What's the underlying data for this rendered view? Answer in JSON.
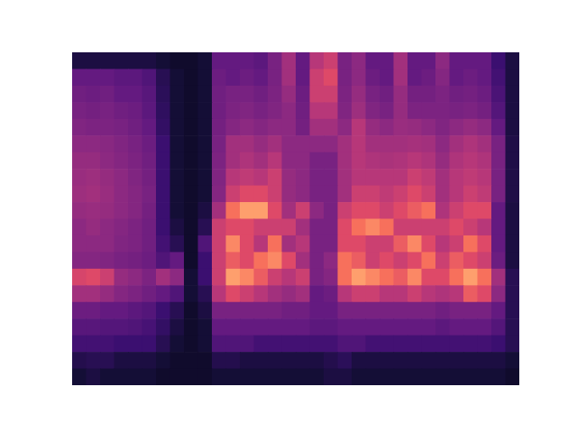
{
  "chart_data": {
    "type": "heatmap",
    "color": "magma",
    "tick_labels": false,
    "zlim": [
      0,
      1
    ],
    "cells": [
      [
        0.12,
        0.12,
        0.12,
        0.12,
        0.12,
        0.12,
        0.1,
        0.08,
        0.08,
        0.1,
        0.3,
        0.3,
        0.3,
        0.28,
        0.35,
        0.45,
        0.3,
        0.5,
        0.55,
        0.35,
        0.4,
        0.3,
        0.3,
        0.45,
        0.3,
        0.3,
        0.4,
        0.3,
        0.3,
        0.3,
        0.2,
        0.12
      ],
      [
        0.3,
        0.3,
        0.3,
        0.28,
        0.28,
        0.25,
        0.15,
        0.1,
        0.08,
        0.1,
        0.32,
        0.3,
        0.32,
        0.3,
        0.35,
        0.45,
        0.3,
        0.55,
        0.6,
        0.35,
        0.4,
        0.32,
        0.3,
        0.45,
        0.3,
        0.32,
        0.38,
        0.3,
        0.32,
        0.3,
        0.22,
        0.12
      ],
      [
        0.33,
        0.32,
        0.33,
        0.3,
        0.3,
        0.27,
        0.16,
        0.1,
        0.08,
        0.1,
        0.33,
        0.35,
        0.35,
        0.33,
        0.36,
        0.42,
        0.32,
        0.55,
        0.55,
        0.36,
        0.42,
        0.35,
        0.33,
        0.42,
        0.34,
        0.34,
        0.36,
        0.33,
        0.34,
        0.32,
        0.24,
        0.12
      ],
      [
        0.35,
        0.34,
        0.35,
        0.33,
        0.32,
        0.28,
        0.17,
        0.1,
        0.08,
        0.1,
        0.33,
        0.36,
        0.37,
        0.35,
        0.37,
        0.4,
        0.33,
        0.5,
        0.5,
        0.37,
        0.44,
        0.37,
        0.35,
        0.42,
        0.36,
        0.36,
        0.36,
        0.35,
        0.36,
        0.34,
        0.26,
        0.12
      ],
      [
        0.37,
        0.36,
        0.36,
        0.35,
        0.33,
        0.3,
        0.18,
        0.1,
        0.08,
        0.1,
        0.34,
        0.38,
        0.4,
        0.38,
        0.4,
        0.4,
        0.34,
        0.45,
        0.45,
        0.4,
        0.5,
        0.42,
        0.4,
        0.43,
        0.42,
        0.4,
        0.37,
        0.4,
        0.42,
        0.4,
        0.3,
        0.12
      ],
      [
        0.4,
        0.4,
        0.39,
        0.37,
        0.35,
        0.32,
        0.2,
        0.1,
        0.08,
        0.1,
        0.35,
        0.45,
        0.45,
        0.42,
        0.45,
        0.4,
        0.4,
        0.4,
        0.4,
        0.45,
        0.5,
        0.45,
        0.45,
        0.45,
        0.46,
        0.45,
        0.4,
        0.45,
        0.48,
        0.45,
        0.35,
        0.13
      ],
      [
        0.42,
        0.42,
        0.4,
        0.38,
        0.36,
        0.33,
        0.2,
        0.1,
        0.08,
        0.1,
        0.36,
        0.45,
        0.48,
        0.45,
        0.5,
        0.4,
        0.4,
        0.35,
        0.35,
        0.45,
        0.5,
        0.48,
        0.47,
        0.48,
        0.5,
        0.48,
        0.42,
        0.48,
        0.5,
        0.48,
        0.35,
        0.13
      ],
      [
        0.43,
        0.44,
        0.42,
        0.4,
        0.37,
        0.34,
        0.2,
        0.1,
        0.08,
        0.1,
        0.37,
        0.5,
        0.52,
        0.5,
        0.55,
        0.42,
        0.4,
        0.35,
        0.35,
        0.45,
        0.5,
        0.5,
        0.5,
        0.5,
        0.55,
        0.52,
        0.45,
        0.5,
        0.52,
        0.5,
        0.35,
        0.13
      ],
      [
        0.44,
        0.45,
        0.43,
        0.4,
        0.38,
        0.35,
        0.2,
        0.1,
        0.08,
        0.1,
        0.38,
        0.55,
        0.6,
        0.6,
        0.55,
        0.42,
        0.4,
        0.35,
        0.35,
        0.45,
        0.55,
        0.55,
        0.52,
        0.55,
        0.6,
        0.55,
        0.45,
        0.5,
        0.55,
        0.52,
        0.35,
        0.13
      ],
      [
        0.42,
        0.43,
        0.42,
        0.4,
        0.38,
        0.34,
        0.2,
        0.1,
        0.08,
        0.12,
        0.45,
        0.7,
        0.8,
        0.8,
        0.6,
        0.45,
        0.55,
        0.4,
        0.35,
        0.55,
        0.6,
        0.6,
        0.55,
        0.6,
        0.65,
        0.7,
        0.48,
        0.55,
        0.6,
        0.6,
        0.3,
        0.12
      ],
      [
        0.4,
        0.42,
        0.4,
        0.38,
        0.36,
        0.33,
        0.2,
        0.12,
        0.08,
        0.15,
        0.55,
        0.6,
        0.6,
        0.55,
        0.55,
        0.55,
        0.45,
        0.35,
        0.35,
        0.6,
        0.7,
        0.75,
        0.7,
        0.55,
        0.55,
        0.55,
        0.55,
        0.6,
        0.55,
        0.5,
        0.3,
        0.12
      ],
      [
        0.4,
        0.4,
        0.4,
        0.37,
        0.36,
        0.33,
        0.22,
        0.15,
        0.08,
        0.25,
        0.55,
        0.75,
        0.6,
        0.5,
        0.7,
        0.45,
        0.5,
        0.35,
        0.35,
        0.6,
        0.6,
        0.55,
        0.55,
        0.65,
        0.75,
        0.6,
        0.5,
        0.55,
        0.7,
        0.6,
        0.3,
        0.12
      ],
      [
        0.38,
        0.38,
        0.37,
        0.35,
        0.34,
        0.32,
        0.25,
        0.3,
        0.08,
        0.2,
        0.55,
        0.65,
        0.6,
        0.7,
        0.75,
        0.6,
        0.45,
        0.35,
        0.4,
        0.7,
        0.65,
        0.55,
        0.6,
        0.55,
        0.6,
        0.7,
        0.55,
        0.65,
        0.6,
        0.55,
        0.32,
        0.12
      ],
      [
        0.58,
        0.6,
        0.55,
        0.42,
        0.4,
        0.36,
        0.45,
        0.4,
        0.1,
        0.2,
        0.55,
        0.8,
        0.75,
        0.65,
        0.55,
        0.5,
        0.55,
        0.35,
        0.38,
        0.7,
        0.8,
        0.75,
        0.7,
        0.65,
        0.75,
        0.6,
        0.6,
        0.7,
        0.8,
        0.7,
        0.45,
        0.15
      ],
      [
        0.45,
        0.45,
        0.42,
        0.38,
        0.36,
        0.33,
        0.3,
        0.25,
        0.1,
        0.15,
        0.5,
        0.6,
        0.55,
        0.5,
        0.45,
        0.42,
        0.45,
        0.3,
        0.32,
        0.5,
        0.55,
        0.55,
        0.5,
        0.5,
        0.55,
        0.5,
        0.48,
        0.5,
        0.65,
        0.6,
        0.4,
        0.15
      ],
      [
        0.32,
        0.32,
        0.3,
        0.3,
        0.28,
        0.26,
        0.2,
        0.15,
        0.08,
        0.12,
        0.35,
        0.35,
        0.35,
        0.35,
        0.35,
        0.33,
        0.33,
        0.3,
        0.3,
        0.35,
        0.35,
        0.35,
        0.35,
        0.35,
        0.35,
        0.35,
        0.33,
        0.35,
        0.35,
        0.35,
        0.3,
        0.15
      ],
      [
        0.27,
        0.27,
        0.26,
        0.26,
        0.25,
        0.23,
        0.18,
        0.12,
        0.08,
        0.1,
        0.3,
        0.3,
        0.3,
        0.3,
        0.3,
        0.3,
        0.3,
        0.28,
        0.28,
        0.3,
        0.3,
        0.3,
        0.3,
        0.3,
        0.3,
        0.3,
        0.28,
        0.3,
        0.3,
        0.3,
        0.26,
        0.15
      ],
      [
        0.22,
        0.22,
        0.22,
        0.2,
        0.2,
        0.2,
        0.15,
        0.1,
        0.08,
        0.1,
        0.25,
        0.25,
        0.25,
        0.22,
        0.22,
        0.22,
        0.22,
        0.22,
        0.22,
        0.25,
        0.25,
        0.22,
        0.22,
        0.22,
        0.22,
        0.22,
        0.22,
        0.22,
        0.22,
        0.22,
        0.2,
        0.15
      ],
      [
        0.14,
        0.15,
        0.15,
        0.12,
        0.12,
        0.12,
        0.1,
        0.08,
        0.08,
        0.08,
        0.14,
        0.14,
        0.12,
        0.12,
        0.12,
        0.12,
        0.12,
        0.12,
        0.14,
        0.16,
        0.12,
        0.12,
        0.12,
        0.12,
        0.12,
        0.12,
        0.12,
        0.12,
        0.12,
        0.12,
        0.12,
        0.1
      ],
      [
        0.1,
        0.12,
        0.1,
        0.1,
        0.1,
        0.1,
        0.08,
        0.08,
        0.08,
        0.08,
        0.1,
        0.1,
        0.1,
        0.1,
        0.1,
        0.1,
        0.1,
        0.1,
        0.12,
        0.12,
        0.1,
        0.1,
        0.1,
        0.1,
        0.1,
        0.1,
        0.1,
        0.1,
        0.1,
        0.1,
        0.1,
        0.08
      ]
    ]
  }
}
